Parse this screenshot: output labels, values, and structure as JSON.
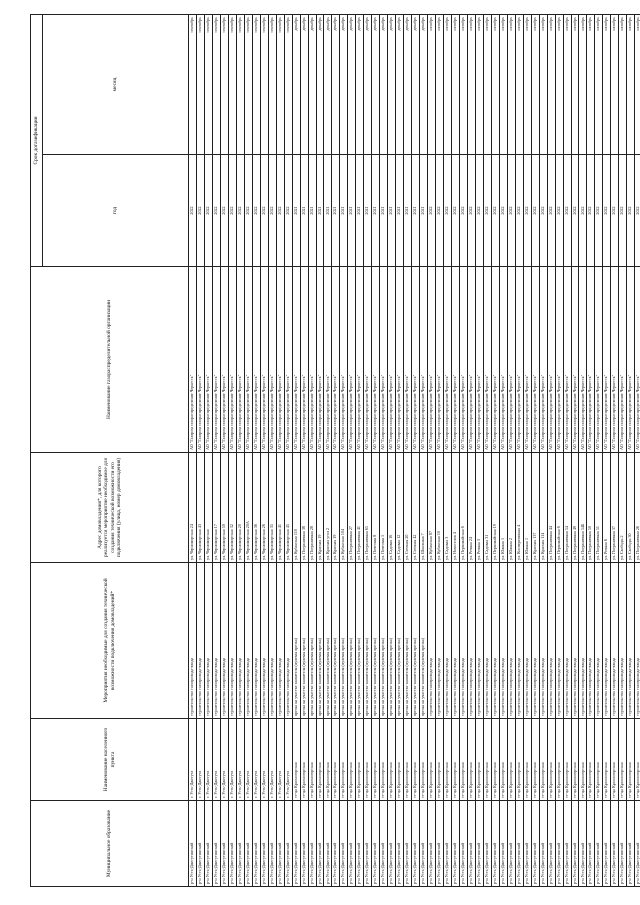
{
  "headers": {
    "municipality": "Муниципальное образование",
    "settlement": "Наименование населенного пункта",
    "measures": "Мероприятия необходимые для создания технической возможности подключения домовладений*",
    "address": "Адрес домовладения*, для которого реализуется мероприятие необходимое для создания технической возможности его подключения (улица, номер домовладения)",
    "gdo": "Наименование газораспределительной организации",
    "term_group": "Срок догазификации",
    "year": "год",
    "month": "месяц"
  },
  "rows": [
    [
      "р-н Усть-Джегутинский",
      "г. Усть-Джегута",
      "строительство газопровода-ввода",
      "ул. Черноморская 24",
      "АО \"Газпром газораспределение Черкесск\"",
      "2022",
      "сентябрь"
    ],
    [
      "р-н Усть-Джегутинский",
      "г. Усть-Джегута",
      "строительство газопровода-ввода",
      "ул. Черноморская 43",
      "АО \"Газпром газораспределение Черкесск\"",
      "2022",
      "сентябрь"
    ],
    [
      "р-н Усть-Джегутинский",
      "г. Усть-Джегута",
      "строительство газопровода-ввода",
      "ул. Черноморская",
      "АО \"Газпром газораспределение Черкесск\"",
      "2022",
      "сентябрь"
    ],
    [
      "р-н Усть-Джегутинский",
      "г. Усть-Джегута",
      "строительство газопровода-ввода",
      "ул. Черноморская 17",
      "АО \"Газпром газораспределение Черкесск\"",
      "2022",
      "сентябрь"
    ],
    [
      "р-н Усть-Джегутинский",
      "г. Усть-Джегута",
      "строительство газопровода-ввода",
      "ул. Черноморская 50",
      "АО \"Газпром газораспределение Черкесск\"",
      "2022",
      "сентябрь"
    ],
    [
      "р-н Усть-Джегутинский",
      "г. Усть-Джегута",
      "строительство газопровода-ввода",
      "ул. Черноморская 32",
      "АО \"Газпром газораспределение Черкесск\"",
      "2022",
      "сентябрь"
    ],
    [
      "р-н Усть-Джегутинский",
      "г. Усть-Джегута",
      "строительство газопровода-ввода",
      "ул. Черноморская 20",
      "АО \"Газпром газораспределение Черкесск\"",
      "2022",
      "сентябрь"
    ],
    [
      "р-н Усть-Джегутинский",
      "г. Усть-Джегута",
      "строительство газопровода-ввода",
      "ул. Черноморская 20А",
      "АО \"Газпром газораспределение Черкесск\"",
      "2022",
      "сентябрь"
    ],
    [
      "р-н Усть-Джегутинский",
      "г. Усть-Джегута",
      "строительство газопровода-ввода",
      "ул. Черноморская 36",
      "АО \"Газпром газораспределение Черкесск\"",
      "2022",
      "сентябрь"
    ],
    [
      "р-н Усть-Джегутинский",
      "г. Усть-Джегута",
      "строительство газопровода-ввода",
      "ул. Черноморская 26",
      "АО \"Газпром газораспределение Черкесск\"",
      "2022",
      "сентябрь"
    ],
    [
      "р-н Усть-Джегутинский",
      "г. Усть-Джегута",
      "строительство газопровода-ввода",
      "ул. Черноморская 35",
      "АО \"Газпром газораспределение Черкесск\"",
      "2022",
      "сентябрь"
    ],
    [
      "р-н Усть-Джегутинский",
      "г. Усть-Джегута",
      "строительство газопровода-ввода",
      "ул. Черноморская 41",
      "АО \"Газпром газораспределение Черкесск\"",
      "2022",
      "сентябрь"
    ],
    [
      "р-н Усть-Джегутинский",
      "г. Усть-Джегута",
      "строительство газопровода-ввода",
      "ул. Черноморская 45",
      "АО \"Газпром газораспределение Черкесск\"",
      "2022",
      "сентябрь"
    ],
    [
      "р-н Усть-Джегутинский",
      "ст-ца Красногорская",
      "врезка на участке заявителя (нулевая врезка)",
      "ул. Кубанская 110",
      "АО \"Газпром газораспределение Черкесск\"",
      "2021",
      "декабрь"
    ],
    [
      "р-н Усть-Джегутинский",
      "ст-ца Красногорская",
      "врезка на участке заявителя (нулевая врезка)",
      "ул. Пограничная 38",
      "АО \"Газпром газораспределение Черкесск\"",
      "2021",
      "декабрь"
    ],
    [
      "р-н Усть-Джегутинский",
      "ст-ца Красногорская",
      "врезка на участке заявителя (нулевая врезка)",
      "ул. Пограничная 28",
      "АО \"Газпром газораспределение Черкесск\"",
      "2021",
      "декабрь"
    ],
    [
      "р-н Усть-Джегутинский",
      "ст-ца Красногорская",
      "врезка на участке заявителя (нулевая врезка)",
      "ул. Красная 19",
      "АО \"Газпром газораспределение Черкесск\"",
      "2021",
      "декабрь"
    ],
    [
      "р-н Усть-Джегутинский",
      "ст-ца Красногорская",
      "врезка на участке заявителя (нулевая врезка)",
      "ул. Красная угол 2",
      "АО \"Газпром газораспределение Черкесск\"",
      "2021",
      "декабрь"
    ],
    [
      "р-н Усть-Джегутинский",
      "ст-ца Красногорская",
      "врезка на участке заявителя (нулевая врезка)",
      "ул. Красная 19",
      "АО \"Газпром газораспределение Черкесск\"",
      "2021",
      "декабрь"
    ],
    [
      "р-н Усть-Джегутинский",
      "ст-ца Красногорская",
      "врезка на участке заявителя (нулевая врезка)",
      "ул. Кубанская 104",
      "АО \"Газпром газораспределение Черкесск\"",
      "2021",
      "декабрь"
    ],
    [
      "р-н Усть-Джегутинский",
      "ст-ца Красногорская",
      "врезка на участке заявителя (нулевая врезка)",
      "ул. Пограничная 27",
      "АО \"Газпром газораспределение Черкесск\"",
      "2021",
      "декабрь"
    ],
    [
      "р-н Усть-Джегутинский",
      "ст-ца Красногорская",
      "врезка на участке заявителя (нулевая врезка)",
      "ул. Пограничная 41",
      "АО \"Газпром газораспределение Черкесск\"",
      "2021",
      "декабрь"
    ],
    [
      "р-н Усть-Джегутинский",
      "ст-ца Красногорская",
      "врезка на участке заявителя (нулевая врезка)",
      "ул. Пограничная 65",
      "АО \"Газпром газораспределение Черкесск\"",
      "2021",
      "декабрь"
    ],
    [
      "р-н Усть-Джегутинский",
      "ст-ца Красногорская",
      "врезка на участке заявителя (нулевая врезка)",
      "ул. Почтовая 8",
      "АО \"Газпром газораспределение Черкесск\"",
      "2021",
      "декабрь"
    ],
    [
      "р-н Усть-Джегутинский",
      "ст-ца Красногорская",
      "врезка на участке заявителя (нулевая врезка)",
      "ул. Почтовая 5",
      "АО \"Газпром газораспределение Черкесск\"",
      "2021",
      "декабрь"
    ],
    [
      "р-н Усть-Джегутинский",
      "ст-ца Красногорская",
      "врезка на участке заявителя (нулевая врезка)",
      "ул. Садовая 16",
      "АО \"Газпром газораспределение Черкесск\"",
      "2021",
      "декабрь"
    ],
    [
      "р-н Усть-Джегутинский",
      "ст-ца Красногорская",
      "врезка на участке заявителя (нулевая врезка)",
      "ул. Садовая 12",
      "АО \"Газпром газораспределение Черкесск\"",
      "2021",
      "декабрь"
    ],
    [
      "р-н Усть-Джегутинский",
      "ст-ца Красногорская",
      "врезка на участке заявителя (нулевая врезка)",
      "ул. Степная 20",
      "АО \"Газпром газораспределение Черкесск\"",
      "2021",
      "декабрь"
    ],
    [
      "р-н Усть-Джегутинский",
      "ст-ца Красногорская",
      "врезка на участке заявителя (нулевая врезка)",
      "ул. Степная 42",
      "АО \"Газпром газораспределение Черкесск\"",
      "2021",
      "декабрь"
    ],
    [
      "р-н Усть-Джегутинский",
      "ст-ца Красногорская",
      "врезка на участке заявителя (нулевая врезка)",
      "ул. Школьная 7",
      "АО \"Газпром газораспределение Черкесск\"",
      "2021",
      "декабрь"
    ],
    [
      "р-н Усть-Джегутинский",
      "ст-ца Красногорская",
      "строительство газопровода-ввода",
      "ул. Кубанская 87",
      "АО \"Газпром газораспределение Черкесск\"",
      "2022",
      "октябрь"
    ],
    [
      "р-н Усть-Джегутинский",
      "ст-ца Красногорская",
      "строительство газопровода-ввода",
      "ул. Кубанская 10",
      "АО \"Газпром газораспределение Черкесск\"",
      "2022",
      "октябрь"
    ],
    [
      "р-н Усть-Джегутинский",
      "ст-ца Красногорская",
      "строительство газопровода-ввода",
      "ул. Садовая 3",
      "АО \"Газпром газораспределение Черкесск\"",
      "2022",
      "октябрь"
    ],
    [
      "р-н Усть-Джегутинский",
      "ст-ца Красногорская",
      "строительство газопровода-ввода",
      "ул. Новоселов 4",
      "АО \"Газпром газораспределение Черкесск\"",
      "2022",
      "октябрь"
    ],
    [
      "р-н Усть-Джегутинский",
      "ст-ца Красногорская",
      "строительство газопровода-ввода",
      "ул. Первомайская 6",
      "АО \"Газпром газораспределение Черкесск\"",
      "2022",
      "октябрь"
    ],
    [
      "р-н Усть-Джегутинский",
      "ст-ца Красногорская",
      "строительство газопровода-ввода",
      "ул. Речная 24",
      "АО \"Газпром газораспределение Черкесск\"",
      "2022",
      "октябрь"
    ],
    [
      "р-н Усть-Джегутинский",
      "ст-ца Красногорская",
      "строительство газопровода-ввода",
      "ул. Речная 3",
      "АО \"Газпром газораспределение Черкесск\"",
      "2022",
      "октябрь"
    ],
    [
      "р-н Усть-Джегутинский",
      "ст-ца Красногорская",
      "строительство газопровода-ввода",
      "ул. Садовая 31",
      "АО \"Газпром газораспределение Черкесск\"",
      "2022",
      "октябрь"
    ],
    [
      "р-н Усть-Джегутинский",
      "ст-ца Красногорская",
      "строительство газопровода-ввода",
      "ул. Первомайская 19",
      "АО \"Газпром газораспределение Черкесск\"",
      "2022",
      "октябрь"
    ],
    [
      "р-н Усть-Джегутинский",
      "ст-ца Красногорская",
      "строительство газопровода-ввода",
      "ул. Южная 1",
      "АО \"Газпром газораспределение Черкесск\"",
      "2022",
      "октябрь"
    ],
    [
      "р-н Усть-Джегутинский",
      "ст-ца Красногорская",
      "строительство газопровода-ввода",
      "ул. Южная 2",
      "АО \"Газпром газораспределение Черкесск\"",
      "2022",
      "октябрь"
    ],
    [
      "р-н Усть-Джегутинский",
      "ст-ца Красногорская",
      "строительство газопровода-ввода",
      "ул. Кооперативная 4",
      "АО \"Газпром газораспределение Черкесск\"",
      "2022",
      "октябрь"
    ],
    [
      "р-н Усть-Джегутинский",
      "ст-ца Красногорская",
      "строительство газопровода-ввода",
      "ул. Южная 1",
      "АО \"Газпром газораспределение Черкесск\"",
      "2022",
      "октябрь"
    ],
    [
      "р-н Усть-Джегутинский",
      "ст-ца Красногорская",
      "строительство газопровода-ввода",
      "ул. Красная 137",
      "АО \"Газпром газораспределение Черкесск\"",
      "2022",
      "октябрь"
    ],
    [
      "р-н Усть-Джегутинский",
      "ст-ца Красногорская",
      "строительство газопровода-ввода",
      "ул. Красная 114",
      "АО \"Газпром газораспределение Черкесск\"",
      "2022",
      "октябрь"
    ],
    [
      "р-н Усть-Джегутинский",
      "ст-ца Красногорская",
      "строительство газопровода-ввода",
      "ул. Пограничная 44",
      "АО \"Газпром газораспределение Черкесск\"",
      "2022",
      "октябрь"
    ],
    [
      "р-н Усть-Джегутинский",
      "ст-ца Красногорская",
      "строительство газопровода-ввода",
      "ул. Первомайская 6",
      "АО \"Газпром газораспределение Черкесск\"",
      "2022",
      "октябрь"
    ],
    [
      "р-н Усть-Джегутинский",
      "ст-ца Красногорская",
      "строительство газопровода-ввода",
      "ул. Пограничная 54",
      "АО \"Газпром газораспределение Черкесск\"",
      "2022",
      "октябрь"
    ],
    [
      "р-н Усть-Джегутинский",
      "ст-ца Красногорская",
      "строительство газопровода-ввода",
      "ул. Пограничная 49",
      "АО \"Газпром газораспределение Черкесск\"",
      "2022",
      "октябрь"
    ],
    [
      "р-н Усть-Джегутинский",
      "ст-ца Красногорская",
      "строительство газопровода-ввода",
      "ул. Пограничная 54Б",
      "АО \"Газпром газораспределение Черкесск\"",
      "2022",
      "октябрь"
    ],
    [
      "р-н Усть-Джегутинский",
      "ст-ца Красногорская",
      "строительство газопровода-ввода",
      "ул. Пограничная 50",
      "АО \"Газпром газораспределение Черкесск\"",
      "2022",
      "октябрь"
    ],
    [
      "р-н Усть-Джегутинский",
      "ст-ца Красногорская",
      "строительство газопровода-ввода",
      "ул. Пограничная 51",
      "АО \"Газпром газораспределение Черкесск\"",
      "2022",
      "октябрь"
    ],
    [
      "р-н Усть-Джегутинский",
      "ст-ца Красногорская",
      "строительство газопровода-ввода",
      "ул. Речная 6",
      "АО \"Газпром газораспределение Черкесск\"",
      "2022",
      "октябрь"
    ],
    [
      "р-н Усть-Джегутинский",
      "ст-ца Красногорская",
      "строительство газопровода-ввода",
      "ул. Пограничная 37",
      "АО \"Газпром газораспределение Черкесск\"",
      "2022",
      "октябрь"
    ],
    [
      "р-н Усть-Джегутинский",
      "ст-ца Красногорская",
      "строительство газопровода-ввода",
      "ул. Свободы 2",
      "АО \"Газпром газораспределение Черкесск\"",
      "2022",
      "октябрь"
    ],
    [
      "р-н Усть-Джегутинский",
      "ст-ца Красногорская",
      "строительство газопровода-ввода",
      "ул. Свободы 30",
      "АО \"Газпром газораспределение Черкесск\"",
      "2022",
      "октябрь"
    ],
    [
      "р-н Усть-Джегутинский",
      "ст-ца Красногорская",
      "строительство газопровода-ввода",
      "ул. Пограничная 26",
      "АО \"Газпром газораспределение Черкесск\"",
      "2022",
      "октябрь"
    ],
    [
      "р-н Усть-Джегутинский",
      "с. Важное",
      "строительство газопровода-ввода",
      "ул. Колхозная 76",
      "АО \"Газпром газораспределение Черкесск\"",
      "2022",
      "сентябрь"
    ],
    [
      "р-н Усть-Джегутинский",
      "с. Важное",
      "строительство газопровода-ввода",
      "ул. Колхозная 92",
      "АО \"Газпром газораспределение Черкесск\"",
      "2022",
      "сентябрь"
    ],
    [
      "р-н Усть-Джегутинский",
      "с. Важное",
      "строительство газопровода-ввода",
      "ул. Колхозная 20А",
      "АО \"Газпром газораспределение Черкесск\"",
      "2022",
      "сентябрь"
    ],
    [
      "р-н Усть-Джегутинский",
      "с. Важное",
      "строительство газопровода-ввода",
      "пер. Северный 29",
      "АО \"Газпром газораспределение Черкесск\"",
      "2022",
      "сентябрь"
    ],
    [
      "р-н Усть-Джегутинский",
      "с. Важное",
      "строительство газопровода-ввода",
      "пер. Северный 6",
      "АО \"Газпром газораспределение Черкесск\"",
      "2022",
      "сентябрь"
    ]
  ]
}
